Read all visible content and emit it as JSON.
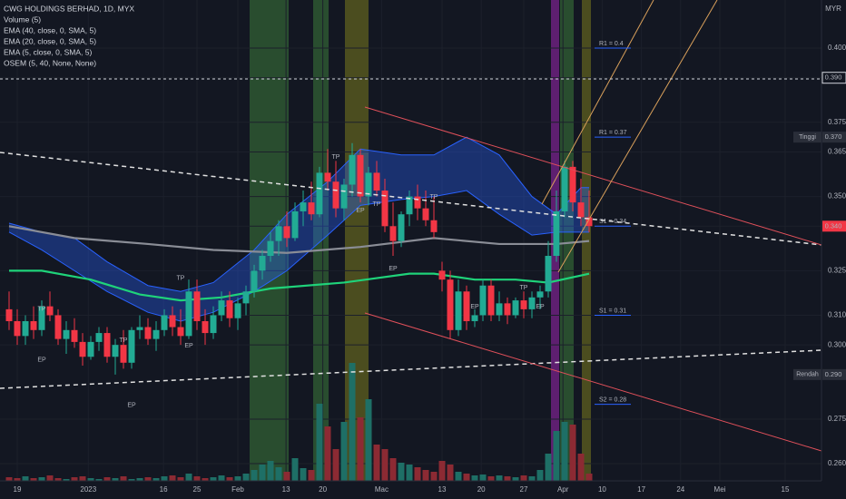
{
  "chart_data": {
    "type": "candlestick",
    "title": "CWG HOLDINGS BERHAD, 1D, MYX",
    "indicators": [
      "Volume (5)",
      "EMA (40, close, 0, SMA, 5)",
      "EMA (20, close, 0, SMA, 5)",
      "EMA (5, close, 0, SMA, 5)",
      "OSEM (5, 40, None, None)"
    ],
    "axis_label": "MYR",
    "up_color": "#22ab94",
    "down_color": "#f23645",
    "candles": [
      [
        0.312,
        0.318,
        0.305,
        0.308
      ],
      [
        0.308,
        0.312,
        0.3,
        0.303
      ],
      [
        0.303,
        0.31,
        0.3,
        0.308
      ],
      [
        0.308,
        0.313,
        0.302,
        0.305
      ],
      [
        0.305,
        0.315,
        0.303,
        0.313
      ],
      [
        0.313,
        0.318,
        0.308,
        0.31
      ],
      [
        0.31,
        0.312,
        0.3,
        0.302
      ],
      [
        0.302,
        0.308,
        0.297,
        0.305
      ],
      [
        0.305,
        0.309,
        0.299,
        0.301
      ],
      [
        0.301,
        0.304,
        0.293,
        0.296
      ],
      [
        0.296,
        0.303,
        0.295,
        0.301
      ],
      [
        0.301,
        0.306,
        0.298,
        0.304
      ],
      [
        0.304,
        0.306,
        0.294,
        0.296
      ],
      [
        0.296,
        0.302,
        0.29,
        0.3
      ],
      [
        0.3,
        0.305,
        0.292,
        0.294
      ],
      [
        0.294,
        0.306,
        0.292,
        0.305
      ],
      [
        0.305,
        0.31,
        0.302,
        0.306
      ],
      [
        0.306,
        0.309,
        0.3,
        0.302
      ],
      [
        0.302,
        0.308,
        0.298,
        0.305
      ],
      [
        0.305,
        0.312,
        0.303,
        0.31
      ],
      [
        0.31,
        0.313,
        0.303,
        0.306
      ],
      [
        0.306,
        0.312,
        0.3,
        0.303
      ],
      [
        0.303,
        0.322,
        0.302,
        0.318
      ],
      [
        0.318,
        0.322,
        0.305,
        0.308
      ],
      [
        0.308,
        0.312,
        0.3,
        0.304
      ],
      [
        0.304,
        0.313,
        0.302,
        0.31
      ],
      [
        0.31,
        0.318,
        0.308,
        0.315
      ],
      [
        0.315,
        0.318,
        0.306,
        0.309
      ],
      [
        0.309,
        0.316,
        0.305,
        0.314
      ],
      [
        0.314,
        0.32,
        0.31,
        0.318
      ],
      [
        0.318,
        0.327,
        0.316,
        0.325
      ],
      [
        0.325,
        0.332,
        0.322,
        0.33
      ],
      [
        0.33,
        0.338,
        0.328,
        0.335
      ],
      [
        0.335,
        0.342,
        0.33,
        0.34
      ],
      [
        0.34,
        0.345,
        0.333,
        0.336
      ],
      [
        0.336,
        0.348,
        0.335,
        0.345
      ],
      [
        0.345,
        0.352,
        0.34,
        0.348
      ],
      [
        0.348,
        0.355,
        0.342,
        0.344
      ],
      [
        0.344,
        0.36,
        0.343,
        0.358
      ],
      [
        0.358,
        0.366,
        0.352,
        0.355
      ],
      [
        0.355,
        0.362,
        0.343,
        0.346
      ],
      [
        0.346,
        0.356,
        0.342,
        0.354
      ],
      [
        0.354,
        0.368,
        0.35,
        0.364
      ],
      [
        0.364,
        0.366,
        0.348,
        0.35
      ],
      [
        0.35,
        0.36,
        0.347,
        0.358
      ],
      [
        0.358,
        0.362,
        0.35,
        0.352
      ],
      [
        0.352,
        0.356,
        0.338,
        0.34
      ],
      [
        0.34,
        0.348,
        0.33,
        0.335
      ],
      [
        0.335,
        0.345,
        0.333,
        0.344
      ],
      [
        0.344,
        0.352,
        0.34,
        0.35
      ],
      [
        0.35,
        0.354,
        0.342,
        0.346
      ],
      [
        0.346,
        0.352,
        0.34,
        0.342
      ],
      [
        0.342,
        0.35,
        0.336,
        0.338
      ],
      [
        0.325,
        0.328,
        0.318,
        0.322
      ],
      [
        0.322,
        0.325,
        0.302,
        0.305
      ],
      [
        0.305,
        0.322,
        0.303,
        0.318
      ],
      [
        0.318,
        0.32,
        0.305,
        0.308
      ],
      [
        0.308,
        0.312,
        0.306,
        0.31
      ],
      [
        0.31,
        0.322,
        0.308,
        0.32
      ],
      [
        0.32,
        0.322,
        0.308,
        0.31
      ],
      [
        0.31,
        0.318,
        0.308,
        0.314
      ],
      [
        0.314,
        0.316,
        0.307,
        0.31
      ],
      [
        0.31,
        0.316,
        0.309,
        0.315
      ],
      [
        0.315,
        0.318,
        0.309,
        0.312
      ],
      [
        0.312,
        0.318,
        0.309,
        0.316
      ],
      [
        0.316,
        0.32,
        0.312,
        0.318
      ],
      [
        0.318,
        0.335,
        0.316,
        0.33
      ],
      [
        0.33,
        0.352,
        0.328,
        0.345
      ],
      [
        0.345,
        0.362,
        0.343,
        0.36
      ],
      [
        0.36,
        0.362,
        0.345,
        0.348
      ],
      [
        0.348,
        0.356,
        0.34,
        0.343
      ],
      [
        0.343,
        0.352,
        0.338,
        0.34
      ]
    ],
    "volume": {
      "up_color": "#1e6f66",
      "down_color": "#8c2a33",
      "values": [
        4,
        3,
        5,
        3,
        4,
        6,
        3,
        2,
        4,
        5,
        3,
        2,
        4,
        3,
        5,
        2,
        3,
        4,
        3,
        5,
        6,
        4,
        8,
        5,
        3,
        4,
        6,
        4,
        5,
        8,
        12,
        18,
        22,
        15,
        10,
        25,
        14,
        12,
        85,
        60,
        35,
        65,
        130,
        70,
        90,
        40,
        35,
        25,
        20,
        18,
        15,
        12,
        10,
        22,
        18,
        10,
        8,
        6,
        7,
        5,
        6,
        5,
        4,
        6,
        5,
        12,
        30,
        55,
        65,
        62,
        30,
        8
      ]
    },
    "band": {
      "color": "#2962ff",
      "x": [
        0,
        4,
        8,
        12,
        17,
        21,
        25,
        30,
        34,
        39,
        43,
        48,
        52,
        56,
        60,
        64,
        67,
        70,
        71
      ],
      "upper": [
        0.341,
        0.338,
        0.336,
        0.328,
        0.32,
        0.318,
        0.321,
        0.332,
        0.344,
        0.355,
        0.366,
        0.364,
        0.364,
        0.37,
        0.364,
        0.35,
        0.344,
        0.353,
        0.353
      ],
      "lower": [
        0.338,
        0.332,
        0.325,
        0.318,
        0.311,
        0.308,
        0.311,
        0.318,
        0.325,
        0.337,
        0.347,
        0.349,
        0.35,
        0.352,
        0.344,
        0.337,
        0.338,
        0.338,
        0.338
      ]
    },
    "overlays": [
      {
        "color": "#8a8d96",
        "x": [
          0,
          8,
          17,
          25,
          34,
          43,
          52,
          60,
          67,
          71
        ],
        "values": [
          0.34,
          0.336,
          0.334,
          0.332,
          0.331,
          0.333,
          0.336,
          0.334,
          0.334,
          0.335
        ]
      },
      {
        "color": "#1fd37a",
        "x": [
          0,
          4,
          10,
          16,
          21,
          26,
          32,
          41,
          49,
          52,
          57,
          62,
          66,
          71
        ],
        "values": [
          0.325,
          0.325,
          0.322,
          0.317,
          0.315,
          0.316,
          0.319,
          0.321,
          0.324,
          0.324,
          0.322,
          0.322,
          0.321,
          0.324
        ]
      }
    ],
    "signals": [
      {
        "label": "TP",
        "x": 4,
        "y": 0.312,
        "color": "#f23645"
      },
      {
        "label": "TP",
        "x": 14,
        "y": 0.3016,
        "color": "#f23645"
      },
      {
        "label": "TP",
        "x": 21,
        "y": 0.3224,
        "color": "#f23645"
      },
      {
        "label": "TP",
        "x": 40,
        "y": 0.3633,
        "color": "#f23645"
      },
      {
        "label": "TP",
        "x": 45,
        "y": 0.3474,
        "color": "#f23645"
      },
      {
        "label": "TP",
        "x": 52,
        "y": 0.3499,
        "color": "#f23645"
      },
      {
        "label": "TP",
        "x": 63,
        "y": 0.3193,
        "color": "#f23645"
      },
      {
        "label": "EP",
        "x": 4,
        "y": 0.2949,
        "color": "#22ab94"
      },
      {
        "label": "EP",
        "x": 15,
        "y": 0.2796,
        "color": "#22ab94"
      },
      {
        "label": "EP",
        "x": 22,
        "y": 0.2997,
        "color": "#22ab94"
      },
      {
        "label": "EP",
        "x": 43,
        "y": 0.3453,
        "color": "#22ab94"
      },
      {
        "label": "EP",
        "x": 47,
        "y": 0.3257,
        "color": "#22ab94"
      },
      {
        "label": "EP",
        "x": 57,
        "y": 0.3129,
        "color": "#22ab94"
      },
      {
        "label": "EP",
        "x": 65,
        "y": 0.3129,
        "color": "#22ab94"
      }
    ],
    "pivots": [
      {
        "label": "R1 = 0.4",
        "value": 0.4
      },
      {
        "label": "R1 = 0.37",
        "value": 0.37
      },
      {
        "label": "S1 = 0.34",
        "value": 0.34
      },
      {
        "label": "S1 = 0.31",
        "value": 0.31
      },
      {
        "label": "S2 = 0.28",
        "value": 0.28
      }
    ],
    "price_badges": [
      {
        "value": 0.39,
        "label": "0.390",
        "color": "#131722"
      },
      {
        "name": "Tinggi",
        "value": 0.37,
        "label": "0.370",
        "color": "#2a2e39"
      },
      {
        "value": 0.34,
        "label": "0.340",
        "color": "#f23645"
      },
      {
        "name": "Rendah",
        "value": 0.29,
        "label": "0.290",
        "color": "#2a2e39"
      }
    ],
    "ylim": [
      0.2542,
      0.4162
    ],
    "yticks": [
      {
        "value": 0.4,
        "label": "0.400"
      },
      {
        "value": 0.39,
        "label": "0.390"
      },
      {
        "value": 0.375,
        "label": "0.375"
      },
      {
        "value": 0.365,
        "label": "0.365"
      },
      {
        "value": 0.35,
        "label": "0.350"
      },
      {
        "value": 0.34,
        "label": "0.340"
      },
      {
        "value": 0.325,
        "label": "0.325"
      },
      {
        "value": 0.31,
        "label": "0.310"
      },
      {
        "value": 0.3,
        "label": "0.300"
      },
      {
        "value": 0.275,
        "label": "0.275"
      },
      {
        "value": 0.26,
        "label": "0.260"
      }
    ],
    "xticks": [
      {
        "value": 1,
        "label": "19"
      },
      {
        "value": 9.7,
        "label": "2023"
      },
      {
        "value": 18.9,
        "label": "16"
      },
      {
        "value": 23,
        "label": "25"
      },
      {
        "value": 28,
        "label": "Feb"
      },
      {
        "value": 33.9,
        "label": "13"
      },
      {
        "value": 38.4,
        "label": "20"
      },
      {
        "value": 45.6,
        "label": "Mac"
      },
      {
        "value": 53,
        "label": "13"
      },
      {
        "value": 57.8,
        "label": "20"
      },
      {
        "value": 63,
        "label": "27"
      },
      {
        "value": 67.8,
        "label": "Apr"
      },
      {
        "value": 72.6,
        "label": "10"
      },
      {
        "value": 77.4,
        "label": "17"
      },
      {
        "value": 82.2,
        "label": "24"
      },
      {
        "value": 87,
        "label": "Mei"
      },
      {
        "value": 95,
        "label": "15"
      }
    ],
    "grid": true
  }
}
